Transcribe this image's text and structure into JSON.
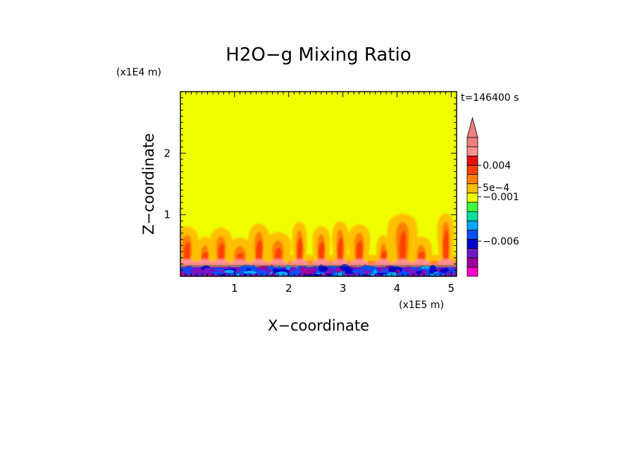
{
  "chart_data": {
    "type": "heatmap",
    "title": "H2O−g Mixing Ratio",
    "xlabel": "X−coordinate",
    "ylabel": "Z−coordinate",
    "x_unit": "(x1E5 m)",
    "y_unit": "(x1E4 m)",
    "time_label": "t=146400 s",
    "xlim": [
      0,
      5.1
    ],
    "ylim": [
      0,
      3
    ],
    "x_ticks": [
      1,
      2,
      3,
      4,
      5
    ],
    "y_ticks": [
      1,
      2
    ],
    "colorbar": {
      "tick_labels": [
        "0.004",
        "5e−4",
        "−0.001",
        "−0.006"
      ],
      "colors": [
        "#ff00c8",
        "#a000a0",
        "#7018c8",
        "#0000c8",
        "#0050ff",
        "#00a8ff",
        "#00e0a0",
        "#40ff40",
        "#f0ff00",
        "#ffc000",
        "#ff8000",
        "#ff4000",
        "#e81010",
        "#ff9090",
        "#f08080"
      ]
    }
  }
}
